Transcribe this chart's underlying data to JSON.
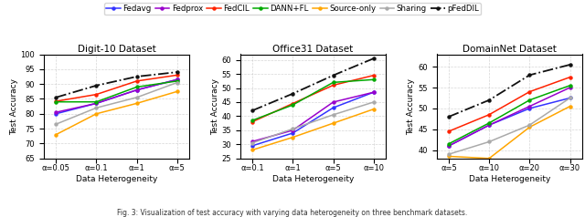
{
  "legend_labels": [
    "Fedavg",
    "Fedprox",
    "FedCIL",
    "DANN+FL",
    "Source-only",
    "Sharing",
    "pFedDIL"
  ],
  "legend_colors": [
    "#3333FF",
    "#9900CC",
    "#FF2200",
    "#00AA00",
    "#FFA500",
    "#AAAAAA",
    "#111111"
  ],
  "digit10": {
    "title": "Digit-10 Dataset",
    "xlabel": "Data Heterogeneity",
    "ylabel": "Test Accuracy",
    "xticks": [
      0,
      1,
      2,
      3
    ],
    "xticklabels": [
      "α=0.05",
      "α=0.1",
      "α=1",
      "α=5"
    ],
    "ylim": [
      65,
      100
    ],
    "yticks": [
      65,
      70,
      75,
      80,
      85,
      90,
      95,
      100
    ],
    "data": {
      "Fedavg": [
        80.0,
        83.5,
        88.0,
        91.5
      ],
      "Fedprox": [
        80.5,
        83.5,
        88.0,
        91.5
      ],
      "FedCIL": [
        84.2,
        86.5,
        91.0,
        93.0
      ],
      "DANN+FL": [
        84.0,
        84.0,
        89.0,
        91.0
      ],
      "Source-only": [
        73.0,
        80.0,
        83.5,
        87.5
      ],
      "Sharing": [
        76.5,
        82.0,
        85.5,
        90.5
      ],
      "pFedDIL": [
        85.5,
        89.5,
        92.5,
        94.0
      ]
    }
  },
  "office31": {
    "title": "Office31 Dataset",
    "xlabel": "Data Heterogeneity",
    "ylabel": "Test Accuracy",
    "xticks": [
      0,
      1,
      2,
      3
    ],
    "xticklabels": [
      "α=0.1",
      "α=1",
      "α=5",
      "α=10"
    ],
    "ylim": [
      25,
      62
    ],
    "yticks": [
      25,
      30,
      35,
      40,
      45,
      50,
      55,
      60
    ],
    "data": {
      "Fedavg": [
        29.5,
        34.0,
        43.0,
        48.5
      ],
      "Fedprox": [
        31.0,
        35.0,
        45.0,
        48.5
      ],
      "FedCIL": [
        38.0,
        44.5,
        51.0,
        54.5
      ],
      "DANN+FL": [
        38.5,
        44.0,
        52.0,
        53.0
      ],
      "Source-only": [
        28.0,
        32.5,
        37.5,
        42.5
      ],
      "Sharing": [
        30.5,
        35.5,
        40.5,
        45.0
      ],
      "pFedDIL": [
        42.0,
        48.0,
        54.5,
        60.5
      ]
    }
  },
  "domainnet": {
    "title": "DomainNet Dataset",
    "xlabel": "Data Heterogeneity",
    "ylabel": "Test Accuracy",
    "xticks": [
      0,
      1,
      2,
      3
    ],
    "xticklabels": [
      "α=5",
      "α=10",
      "α=20",
      "α=30"
    ],
    "ylim": [
      38,
      63
    ],
    "yticks": [
      40,
      45,
      50,
      55,
      60
    ],
    "data": {
      "Fedavg": [
        41.0,
        46.0,
        50.0,
        52.5
      ],
      "Fedprox": [
        41.0,
        46.0,
        50.5,
        55.0
      ],
      "FedCIL": [
        44.5,
        48.5,
        54.0,
        57.5
      ],
      "DANN+FL": [
        41.5,
        46.5,
        52.0,
        55.5
      ],
      "Source-only": [
        38.5,
        38.0,
        45.5,
        50.5
      ],
      "Sharing": [
        39.0,
        42.0,
        46.0,
        52.5
      ],
      "pFedDIL": [
        48.0,
        52.0,
        58.0,
        60.5
      ]
    }
  },
  "caption": "Fig. 3: Visualization of test accuracy with varying data heterogeneity on three benchmark datasets."
}
